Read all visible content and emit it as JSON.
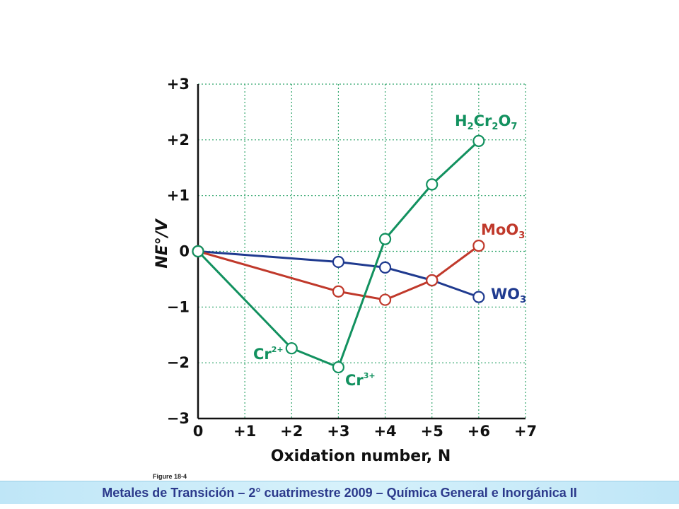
{
  "footer": {
    "text": "Metales de Transición – 2° cuatrimestre 2009 – Química General e Inorgánica II"
  },
  "figure_label": "Figure 18-4",
  "chart_data": {
    "type": "line",
    "xlabel": "Oxidation number, N",
    "ylabel": "NE°/V",
    "xlim": [
      0,
      7
    ],
    "ylim": [
      -3,
      3
    ],
    "x_ticks": [
      "0",
      "+1",
      "+2",
      "+3",
      "+4",
      "+5",
      "+6",
      "+7"
    ],
    "y_ticks": [
      "+3",
      "+2",
      "+1",
      "0",
      "−1",
      "−2",
      "−3"
    ],
    "grid": true,
    "series": [
      {
        "name": "Cr",
        "color": "#12915f",
        "x": [
          0,
          2,
          3,
          4,
          5,
          6
        ],
        "y": [
          0,
          -1.74,
          -2.08,
          0.22,
          1.2,
          1.98
        ]
      },
      {
        "name": "Mo",
        "color": "#c0392b",
        "x": [
          0,
          3,
          4,
          5,
          6
        ],
        "y": [
          0,
          -0.72,
          -0.87,
          -0.52,
          0.1
        ]
      },
      {
        "name": "W",
        "color": "#1f3a8f",
        "x": [
          0,
          3,
          4,
          5,
          6
        ],
        "y": [
          0,
          -0.19,
          -0.29,
          -0.52,
          -0.82
        ]
      }
    ],
    "annotations": [
      {
        "base": "H",
        "sub": "2",
        "base2": "Cr",
        "sub2": "2",
        "base3": "O",
        "sub3": "7",
        "series": "Cr"
      },
      {
        "text": "MoO",
        "sub": "3",
        "series": "Mo"
      },
      {
        "text": "WO",
        "sub": "3",
        "series": "W"
      },
      {
        "text": "Cr",
        "sup": "2+",
        "series": "Cr"
      },
      {
        "text": "Cr",
        "sup": "3+",
        "series": "Cr"
      }
    ]
  }
}
